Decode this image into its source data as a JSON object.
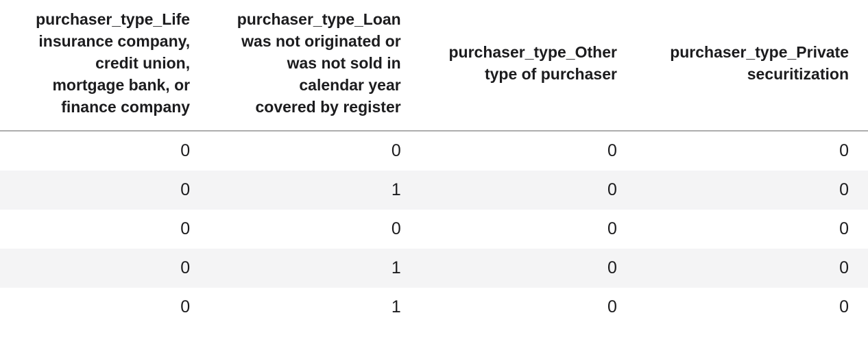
{
  "table": {
    "columns": [
      {
        "label": "purchaser_type_Life\ninsurance company,\ncredit union,\nmortgage bank, or\nfinance company"
      },
      {
        "label": "purchaser_type_Loan\nwas not originated or\nwas not sold in\ncalendar year\ncovered by register"
      },
      {
        "label": "purchaser_type_Other\ntype of purchaser"
      },
      {
        "label": "purchaser_type_Private\nsecuritization"
      }
    ],
    "rows": [
      [
        "0",
        "0",
        "0",
        "0"
      ],
      [
        "0",
        "1",
        "0",
        "0"
      ],
      [
        "0",
        "0",
        "0",
        "0"
      ],
      [
        "0",
        "1",
        "0",
        "0"
      ],
      [
        "0",
        "1",
        "0",
        "0"
      ]
    ]
  },
  "colors": {
    "text": "#1c1c1e",
    "background": "#ffffff",
    "header_divider": "#adadad",
    "row_stripe": "#f4f4f5"
  }
}
